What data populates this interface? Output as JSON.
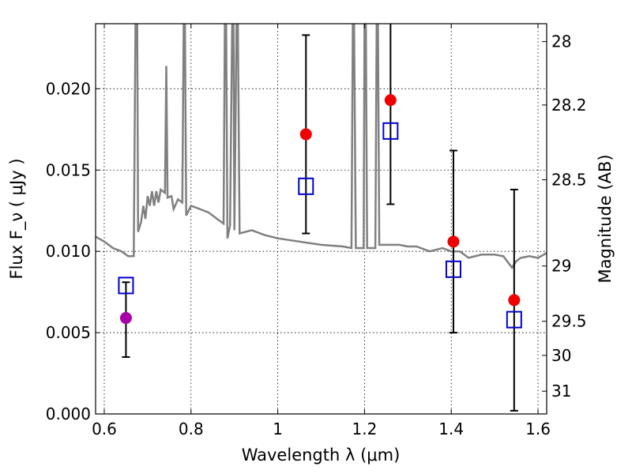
{
  "chart_data": {
    "type": "scatter",
    "xlabel": "Wavelength  λ (μm)",
    "ylabel": "Flux  F_ν  ( μJy )",
    "ylabel_right": "Magnitude (AB)",
    "xlim": [
      0.58,
      1.62
    ],
    "ylim": [
      0.0,
      0.024
    ],
    "grid": true,
    "x_ticks": [
      0.6,
      0.8,
      1.0,
      1.2,
      1.4,
      1.6
    ],
    "x_tick_labels": [
      "0.6",
      "0.8",
      "1",
      "1.2",
      "1.4",
      "1.6"
    ],
    "y_ticks": [
      0.0,
      0.005,
      0.01,
      0.015,
      0.02
    ],
    "y_tick_labels": [
      "0.000",
      "0.005",
      "0.010",
      "0.015",
      "0.020"
    ],
    "right_axis_ticks": [
      {
        "label": "28",
        "flux": 0.0229
      },
      {
        "label": "28.2",
        "flux": 0.019
      },
      {
        "label": "28.5",
        "flux": 0.0144
      },
      {
        "label": "29",
        "flux": 0.0091
      },
      {
        "label": "29.5",
        "flux": 0.0057
      },
      {
        "label": "30",
        "flux": 0.0036
      },
      {
        "label": "31",
        "flux": 0.0014
      }
    ],
    "observed": [
      {
        "x": 0.65,
        "y": 0.0059,
        "color": "#aa00aa",
        "err_low": 0.0035,
        "err_high": 0.0081
      },
      {
        "x": 1.065,
        "y": 0.0172,
        "color": "#ee0000",
        "err_low": 0.0111,
        "err_high": 0.0233
      },
      {
        "x": 1.26,
        "y": 0.0193,
        "color": "#ee0000",
        "err_low": 0.0129,
        "err_high": 0.0245
      },
      {
        "x": 1.405,
        "y": 0.0106,
        "color": "#ee0000",
        "err_low": 0.005,
        "err_high": 0.0162
      },
      {
        "x": 1.545,
        "y": 0.007,
        "color": "#ee0000",
        "err_low": 0.0002,
        "err_high": 0.0138
      }
    ],
    "model_points": [
      {
        "x": 0.65,
        "y": 0.0079
      },
      {
        "x": 1.065,
        "y": 0.014
      },
      {
        "x": 1.26,
        "y": 0.0174
      },
      {
        "x": 1.405,
        "y": 0.0089
      },
      {
        "x": 1.545,
        "y": 0.0058
      }
    ],
    "sed_curve": [
      [
        0.58,
        0.0109
      ],
      [
        0.6,
        0.0106
      ],
      [
        0.62,
        0.0102
      ],
      [
        0.64,
        0.01
      ],
      [
        0.655,
        0.0097
      ],
      [
        0.668,
        0.0097
      ],
      [
        0.672,
        0.024
      ],
      [
        0.676,
        0.024
      ],
      [
        0.678,
        0.0112
      ],
      [
        0.685,
        0.0118
      ],
      [
        0.69,
        0.0128
      ],
      [
        0.695,
        0.012
      ],
      [
        0.7,
        0.0134
      ],
      [
        0.705,
        0.0128
      ],
      [
        0.71,
        0.0137
      ],
      [
        0.715,
        0.0128
      ],
      [
        0.72,
        0.0137
      ],
      [
        0.725,
        0.013
      ],
      [
        0.73,
        0.0138
      ],
      [
        0.74,
        0.0136
      ],
      [
        0.743,
        0.0214
      ],
      [
        0.746,
        0.0133
      ],
      [
        0.755,
        0.0134
      ],
      [
        0.76,
        0.0126
      ],
      [
        0.77,
        0.0132
      ],
      [
        0.78,
        0.013
      ],
      [
        0.783,
        0.024
      ],
      [
        0.786,
        0.024
      ],
      [
        0.789,
        0.0122
      ],
      [
        0.8,
        0.0128
      ],
      [
        0.82,
        0.0126
      ],
      [
        0.84,
        0.0124
      ],
      [
        0.86,
        0.012
      ],
      [
        0.875,
        0.0117
      ],
      [
        0.878,
        0.024
      ],
      [
        0.881,
        0.024
      ],
      [
        0.884,
        0.0108
      ],
      [
        0.89,
        0.0116
      ],
      [
        0.895,
        0.024
      ],
      [
        0.898,
        0.024
      ],
      [
        0.9,
        0.0113
      ],
      [
        0.905,
        0.024
      ],
      [
        0.908,
        0.024
      ],
      [
        0.912,
        0.0111
      ],
      [
        0.94,
        0.0113
      ],
      [
        0.97,
        0.011
      ],
      [
        1.0,
        0.0108
      ],
      [
        1.05,
        0.0106
      ],
      [
        1.1,
        0.0104
      ],
      [
        1.15,
        0.0103
      ],
      [
        1.17,
        0.0102
      ],
      [
        1.173,
        0.024
      ],
      [
        1.176,
        0.024
      ],
      [
        1.18,
        0.0102
      ],
      [
        1.198,
        0.0102
      ],
      [
        1.2,
        0.024
      ],
      [
        1.203,
        0.024
      ],
      [
        1.206,
        0.0102
      ],
      [
        1.225,
        0.0102
      ],
      [
        1.228,
        0.024
      ],
      [
        1.231,
        0.024
      ],
      [
        1.234,
        0.0104
      ],
      [
        1.26,
        0.0104
      ],
      [
        1.28,
        0.0104
      ],
      [
        1.3,
        0.0103
      ],
      [
        1.32,
        0.0103
      ],
      [
        1.35,
        0.01
      ],
      [
        1.38,
        0.0102
      ],
      [
        1.4,
        0.01
      ],
      [
        1.42,
        0.01
      ],
      [
        1.44,
        0.0096
      ],
      [
        1.47,
        0.0098
      ],
      [
        1.5,
        0.0098
      ],
      [
        1.52,
        0.0097
      ],
      [
        1.54,
        0.009
      ],
      [
        1.55,
        0.0094
      ],
      [
        1.56,
        0.0096
      ],
      [
        1.58,
        0.0097
      ],
      [
        1.6,
        0.0096
      ],
      [
        1.62,
        0.0099
      ]
    ]
  }
}
